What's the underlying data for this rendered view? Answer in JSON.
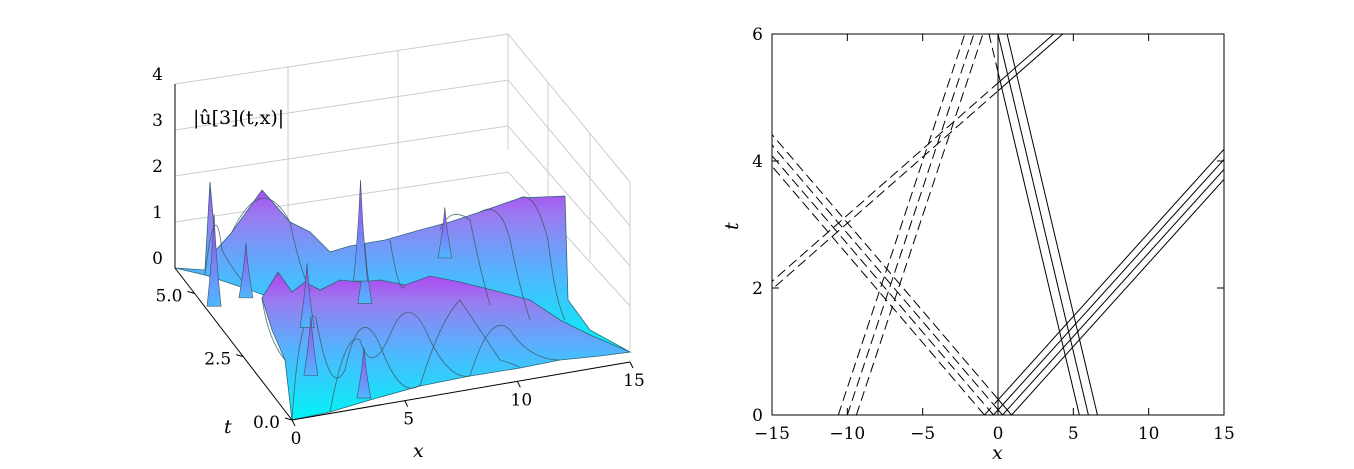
{
  "chart_data": [
    {
      "type": "surface",
      "title": "",
      "zlabel": "|û[3](t,x)|",
      "xlabel": "x",
      "ylabel": "t",
      "xlim": [
        0,
        15
      ],
      "ylim": [
        0,
        6
      ],
      "zlim": [
        0,
        4
      ],
      "x_ticks": [
        0,
        5,
        10,
        15
      ],
      "y_ticks": [
        0.0,
        2.5,
        5.0
      ],
      "z_ticks": [
        0,
        1,
        2,
        3,
        4
      ],
      "x_tick_labels": [
        "0",
        "5",
        "10",
        "15"
      ],
      "y_tick_labels": [
        "0.0",
        "2.5",
        "5.0"
      ],
      "z_tick_labels": [
        "0",
        "1",
        "2",
        "3",
        "4"
      ],
      "colormap": [
        "#00f5f5",
        "#4db8ff",
        "#9a7cf0",
        "#b040f0"
      ],
      "grid": true,
      "peaks": [
        {
          "x": 0.5,
          "t": 5.6,
          "value": 2.0
        },
        {
          "x": 2.0,
          "t": 5.7,
          "value": 1.2
        },
        {
          "x": 3.5,
          "t": 4.3,
          "value": 1.4
        },
        {
          "x": 6.5,
          "t": 4.8,
          "value": 1.3
        },
        {
          "x": 7.0,
          "t": 5.6,
          "value": 2.2
        },
        {
          "x": 11.0,
          "t": 5.9,
          "value": 1.1
        },
        {
          "x": 2.2,
          "t": 2.6,
          "value": 1.3
        },
        {
          "x": 3.6,
          "t": 1.5,
          "value": 1.1
        }
      ]
    },
    {
      "type": "contour",
      "title": "",
      "xlabel": "x",
      "ylabel": "t",
      "xlim": [
        -15,
        15
      ],
      "ylim": [
        0,
        6
      ],
      "x_ticks": [
        -15,
        -10,
        -5,
        0,
        5,
        10,
        15
      ],
      "y_ticks": [
        0,
        2,
        4,
        6
      ],
      "x_tick_labels": [
        "−15",
        "−10",
        "−5",
        "0",
        "5",
        "10",
        "15"
      ],
      "y_tick_labels": [
        "0",
        "2",
        "4",
        "6"
      ],
      "line_color": "#000000",
      "left_half_style": "dashed",
      "right_half_style": "solid",
      "solitons": [
        {
          "x0": 0.0,
          "t0": 0.0,
          "velocity": 3.8,
          "levels": 4
        },
        {
          "x0": 0.0,
          "t0": 0.0,
          "velocity": -3.6,
          "levels": 4
        },
        {
          "x0": -10.0,
          "t0": 0.0,
          "velocity": 1.4,
          "levels": 3
        },
        {
          "x0": 0.0,
          "t0": 6.0,
          "velocity": -1.0,
          "levels": 3
        },
        {
          "x0": 4.0,
          "t0": 6.0,
          "velocity": 4.8,
          "levels": 2
        }
      ]
    }
  ]
}
